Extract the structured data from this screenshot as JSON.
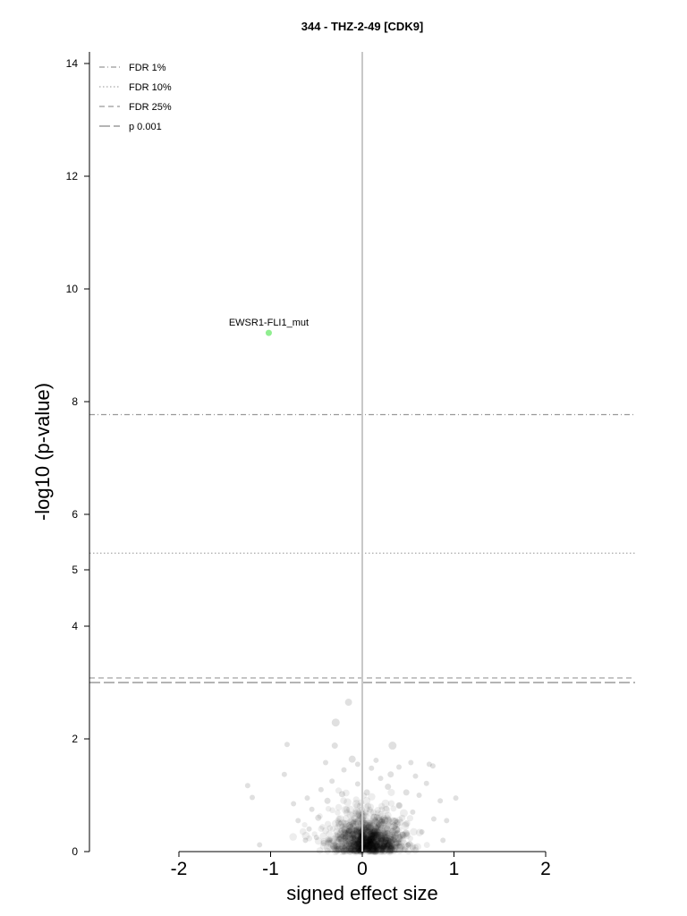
{
  "chart_data": {
    "type": "scatter",
    "title": "344 - THZ-2-49 [CDK9]",
    "xlabel": "signed effect size",
    "ylabel": "-log10 (p-value)",
    "xlim": [
      -2,
      2
    ],
    "y_ticks": [
      0,
      2,
      4,
      5,
      6,
      8,
      10,
      12,
      14
    ],
    "x_ticks": [
      -2,
      -1,
      0,
      1,
      2
    ],
    "grid": false,
    "legend_position": "top-left",
    "reference_lines": [
      {
        "name": "FDR 1%",
        "y": 7.77,
        "style": "dashdot"
      },
      {
        "name": "FDR 10%",
        "y": 5.3,
        "style": "dotted"
      },
      {
        "name": "FDR 25%",
        "y": 3.08,
        "style": "dashed"
      },
      {
        "name": "p 0.001",
        "y": 3.0,
        "style": "longdash"
      }
    ],
    "highlight": {
      "label": "EWSR1-FLI1_mut",
      "x": -1.02,
      "y": 9.22,
      "color": "#90ee90"
    },
    "points": [
      {
        "x": -0.15,
        "y": 2.65,
        "size": 8
      },
      {
        "x": -0.29,
        "y": 2.29,
        "size": 9
      },
      {
        "x": 0.33,
        "y": 1.88,
        "size": 9
      },
      {
        "x": -0.11,
        "y": 1.64,
        "size": 8
      },
      {
        "x": -0.82,
        "y": 1.9,
        "size": 6
      },
      {
        "x": -0.3,
        "y": 1.88,
        "size": 7
      },
      {
        "x": -0.4,
        "y": 1.58,
        "size": 6
      },
      {
        "x": 0.53,
        "y": 1.58,
        "size": 6
      },
      {
        "x": 0.73,
        "y": 1.55,
        "size": 6
      },
      {
        "x": 0.77,
        "y": 1.52,
        "size": 6
      },
      {
        "x": 0.31,
        "y": 1.37,
        "size": 7
      },
      {
        "x": -0.85,
        "y": 1.37,
        "size": 6
      },
      {
        "x": 0.58,
        "y": 1.34,
        "size": 6
      },
      {
        "x": 0.7,
        "y": 1.21,
        "size": 6
      },
      {
        "x": -1.25,
        "y": 1.17,
        "size": 6
      },
      {
        "x": -1.2,
        "y": 0.96,
        "size": 6
      },
      {
        "x": 1.02,
        "y": 0.95,
        "size": 6
      },
      {
        "x": -1.12,
        "y": 0.12,
        "size": 6
      },
      {
        "x": 0.92,
        "y": 0.55,
        "size": 6
      },
      {
        "x": 0.78,
        "y": 0.58,
        "size": 6
      },
      {
        "x": -0.6,
        "y": 0.95,
        "size": 6
      },
      {
        "x": -0.55,
        "y": 0.75,
        "size": 6
      },
      {
        "x": -0.58,
        "y": 0.4,
        "size": 6
      },
      {
        "x": -0.62,
        "y": 0.2,
        "size": 6
      },
      {
        "x": 0.62,
        "y": 1.0,
        "size": 6
      },
      {
        "x": 0.48,
        "y": 1.05,
        "size": 7
      },
      {
        "x": 0.4,
        "y": 0.82,
        "size": 7
      },
      {
        "x": 0.55,
        "y": 0.7,
        "size": 6
      },
      {
        "x": 0.65,
        "y": 0.35,
        "size": 6
      },
      {
        "x": -0.45,
        "y": 1.1,
        "size": 6
      },
      {
        "x": -0.48,
        "y": 0.6,
        "size": 7
      },
      {
        "x": -0.38,
        "y": 0.9,
        "size": 7
      },
      {
        "x": -0.33,
        "y": 1.25,
        "size": 6
      },
      {
        "x": -0.2,
        "y": 1.45,
        "size": 6
      },
      {
        "x": 0.1,
        "y": 1.48,
        "size": 6
      },
      {
        "x": 0.2,
        "y": 1.3,
        "size": 6
      },
      {
        "x": 0.28,
        "y": 1.15,
        "size": 7
      },
      {
        "x": -0.05,
        "y": 1.2,
        "size": 6
      },
      {
        "x": 0.05,
        "y": 1.05,
        "size": 7
      },
      {
        "x": -0.22,
        "y": 1.02,
        "size": 7
      },
      {
        "x": 0.36,
        "y": 0.55,
        "size": 7
      },
      {
        "x": 0.44,
        "y": 0.3,
        "size": 7
      },
      {
        "x": 0.5,
        "y": 0.12,
        "size": 6
      },
      {
        "x": -0.42,
        "y": 0.15,
        "size": 7
      },
      {
        "x": -0.5,
        "y": 0.25,
        "size": 6
      },
      {
        "x": -0.7,
        "y": 0.55,
        "size": 6
      },
      {
        "x": -0.75,
        "y": 0.85,
        "size": 6
      },
      {
        "x": 0.85,
        "y": 0.9,
        "size": 6
      },
      {
        "x": 0.88,
        "y": 0.2,
        "size": 6
      },
      {
        "x": 0.15,
        "y": 1.62,
        "size": 6
      },
      {
        "x": -0.05,
        "y": 1.55,
        "size": 6
      },
      {
        "x": 0.4,
        "y": 1.5,
        "size": 6
      }
    ],
    "cluster": {
      "x_center": 0.05,
      "y_center": 0.35,
      "x_sd": 0.2,
      "y_sd": 0.22,
      "count": 1100
    }
  }
}
